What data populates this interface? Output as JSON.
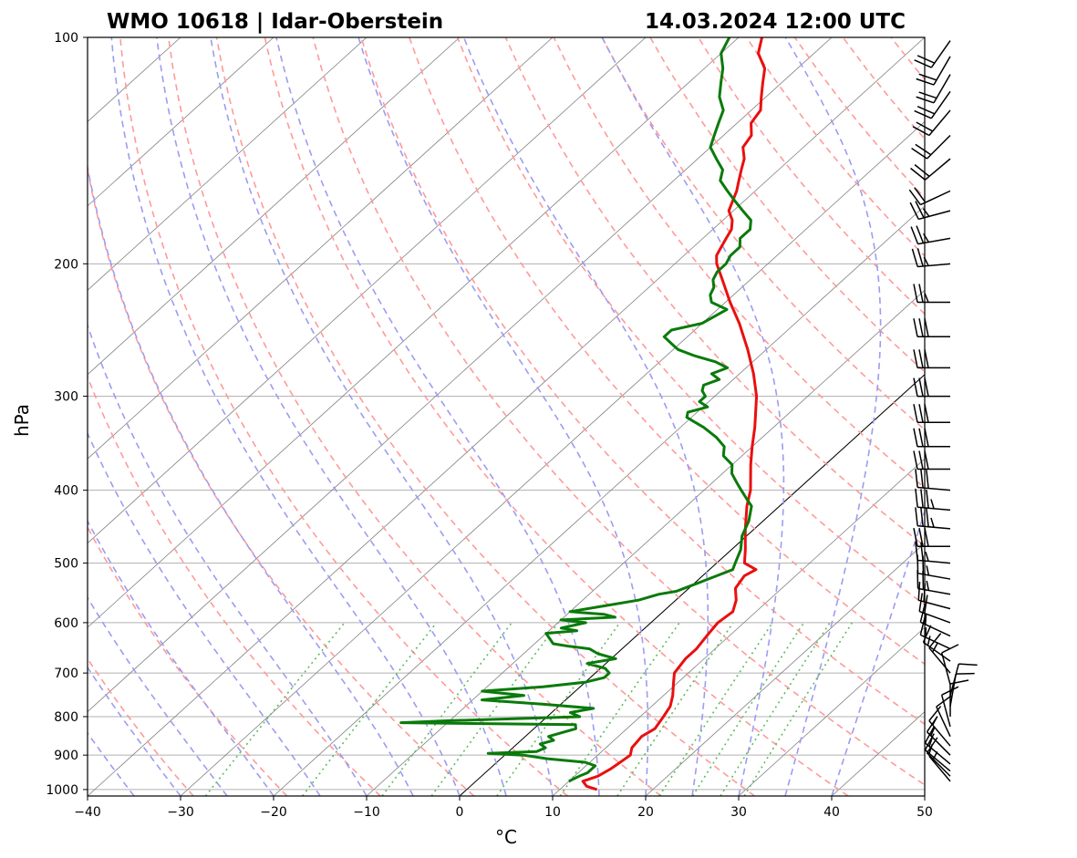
{
  "header": {
    "station": "WMO 10618 | Idar-Oberstein",
    "datetime": "14.03.2024 12:00 UTC"
  },
  "chart_data": {
    "type": "skew-t",
    "title_left": "WMO 10618 | Idar-Oberstein",
    "title_right": "14.03.2024 12:00 UTC",
    "xlabel": "°C",
    "ylabel": "hPa",
    "xlim": [
      -40,
      50
    ],
    "ylim": [
      1020,
      100
    ],
    "x_ticks": [
      -40,
      -30,
      -20,
      -10,
      0,
      10,
      20,
      30,
      40,
      50
    ],
    "x_tick_labels": [
      "−40",
      "−30",
      "−20",
      "−10",
      "0",
      "10",
      "20",
      "30",
      "40",
      "50"
    ],
    "y_ticks": [
      1000,
      900,
      800,
      700,
      600,
      500,
      400,
      300,
      200,
      100
    ],
    "y_tick_labels": [
      "1000",
      "900",
      "800",
      "700",
      "600",
      "500",
      "400",
      "300",
      "200",
      "100"
    ],
    "colors": {
      "temperature": "#e8100f",
      "dewpoint": "#0a7a0a",
      "dry_adiabat": "#ff9a9a",
      "moist_adiabat": "#9c9cf2",
      "mixing_ratio": "#5fba5f",
      "isotherm": "#808080",
      "grid": "#b0b0b0"
    },
    "series": [
      {
        "name": "Temperature",
        "points": [
          [
            1000,
            14.0
          ],
          [
            990,
            12.5
          ],
          [
            975,
            11.5
          ],
          [
            960,
            12.5
          ],
          [
            940,
            13.0
          ],
          [
            925,
            13.2
          ],
          [
            900,
            13.5
          ],
          [
            880,
            12.8
          ],
          [
            850,
            12.5
          ],
          [
            830,
            13.0
          ],
          [
            800,
            12.5
          ],
          [
            775,
            12.0
          ],
          [
            750,
            11.0
          ],
          [
            720,
            9.5
          ],
          [
            700,
            8.5
          ],
          [
            670,
            8.0
          ],
          [
            650,
            8.0
          ],
          [
            620,
            7.5
          ],
          [
            600,
            7.2
          ],
          [
            580,
            7.5
          ],
          [
            560,
            6.5
          ],
          [
            540,
            5.0
          ],
          [
            520,
            4.5
          ],
          [
            510,
            5.0
          ],
          [
            500,
            3.0
          ],
          [
            480,
            1.5
          ],
          [
            450,
            -1.0
          ],
          [
            420,
            -3.5
          ],
          [
            400,
            -5.0
          ],
          [
            370,
            -8.0
          ],
          [
            350,
            -10.0
          ],
          [
            330,
            -12.0
          ],
          [
            300,
            -15.5
          ],
          [
            280,
            -18.5
          ],
          [
            260,
            -22.0
          ],
          [
            240,
            -26.0
          ],
          [
            225,
            -29.5
          ],
          [
            210,
            -33.0
          ],
          [
            200,
            -35.5
          ],
          [
            195,
            -36.5
          ],
          [
            190,
            -37.0
          ],
          [
            185,
            -37.5
          ],
          [
            180,
            -38.0
          ],
          [
            175,
            -39.0
          ],
          [
            170,
            -40.5
          ],
          [
            160,
            -42.0
          ],
          [
            155,
            -43.0
          ],
          [
            150,
            -44.0
          ],
          [
            145,
            -45.0
          ],
          [
            140,
            -46.5
          ],
          [
            135,
            -47.0
          ],
          [
            130,
            -48.5
          ],
          [
            125,
            -49.0
          ],
          [
            120,
            -50.5
          ],
          [
            115,
            -52.0
          ],
          [
            110,
            -53.5
          ],
          [
            105,
            -56.0
          ],
          [
            100,
            -57.5
          ]
        ]
      },
      {
        "name": "Dewpoint",
        "points": [
          [
            975,
            10.0
          ],
          [
            960,
            10.5
          ],
          [
            950,
            11.0
          ],
          [
            930,
            11.0
          ],
          [
            920,
            9.5
          ],
          [
            910,
            5.0
          ],
          [
            900,
            2.0
          ],
          [
            895,
            -2.0
          ],
          [
            890,
            3.0
          ],
          [
            880,
            3.5
          ],
          [
            870,
            2.5
          ],
          [
            860,
            3.5
          ],
          [
            850,
            2.5
          ],
          [
            840,
            3.5
          ],
          [
            830,
            4.5
          ],
          [
            820,
            4.0
          ],
          [
            815,
            -15.0
          ],
          [
            810,
            -10.0
          ],
          [
            800,
            3.5
          ],
          [
            790,
            2.0
          ],
          [
            785,
            3.0
          ],
          [
            780,
            4.0
          ],
          [
            770,
            -2.0
          ],
          [
            760,
            -9.0
          ],
          [
            750,
            -5.0
          ],
          [
            740,
            -10.0
          ],
          [
            730,
            -4.0
          ],
          [
            720,
            0.0
          ],
          [
            710,
            1.5
          ],
          [
            700,
            1.5
          ],
          [
            690,
            0.5
          ],
          [
            680,
            -2.0
          ],
          [
            670,
            0.5
          ],
          [
            660,
            -2.0
          ],
          [
            650,
            -3.5
          ],
          [
            645,
            -6.0
          ],
          [
            640,
            -8.0
          ],
          [
            620,
            -10.0
          ],
          [
            615,
            -7.0
          ],
          [
            610,
            -9.0
          ],
          [
            600,
            -7.0
          ],
          [
            595,
            -10.0
          ],
          [
            590,
            -4.5
          ],
          [
            585,
            -6.0
          ],
          [
            580,
            -10.0
          ],
          [
            570,
            -7.0
          ],
          [
            560,
            -4.0
          ],
          [
            550,
            -2.5
          ],
          [
            545,
            -1.0
          ],
          [
            540,
            -0.5
          ],
          [
            530,
            0.5
          ],
          [
            520,
            1.5
          ],
          [
            510,
            2.5
          ],
          [
            500,
            2.0
          ],
          [
            480,
            1.0
          ],
          [
            460,
            -0.5
          ],
          [
            440,
            -1.5
          ],
          [
            420,
            -3.0
          ],
          [
            410,
            -4.5
          ],
          [
            400,
            -6.0
          ],
          [
            390,
            -7.5
          ],
          [
            380,
            -9.0
          ],
          [
            370,
            -10.0
          ],
          [
            360,
            -12.0
          ],
          [
            350,
            -13.0
          ],
          [
            340,
            -15.0
          ],
          [
            330,
            -17.5
          ],
          [
            320,
            -20.5
          ],
          [
            315,
            -21.0
          ],
          [
            310,
            -19.5
          ],
          [
            305,
            -21.0
          ],
          [
            300,
            -21.0
          ],
          [
            295,
            -22.0
          ],
          [
            290,
            -22.5
          ],
          [
            285,
            -21.5
          ],
          [
            280,
            -23.0
          ],
          [
            275,
            -22.0
          ],
          [
            270,
            -24.0
          ],
          [
            265,
            -27.0
          ],
          [
            260,
            -29.5
          ],
          [
            255,
            -31.0
          ],
          [
            250,
            -32.5
          ],
          [
            245,
            -32.5
          ],
          [
            240,
            -30.0
          ],
          [
            235,
            -29.5
          ],
          [
            230,
            -29.0
          ],
          [
            225,
            -31.5
          ],
          [
            220,
            -32.5
          ],
          [
            215,
            -33.0
          ],
          [
            210,
            -34.0
          ],
          [
            205,
            -34.5
          ],
          [
            200,
            -34.5
          ],
          [
            195,
            -35.0
          ],
          [
            190,
            -35.0
          ],
          [
            185,
            -36.0
          ],
          [
            180,
            -36.0
          ],
          [
            175,
            -37.0
          ],
          [
            170,
            -39.0
          ],
          [
            165,
            -41.0
          ],
          [
            160,
            -43.0
          ],
          [
            155,
            -45.0
          ],
          [
            150,
            -46.0
          ],
          [
            145,
            -48.0
          ],
          [
            140,
            -50.0
          ],
          [
            135,
            -51.0
          ],
          [
            130,
            -52.0
          ],
          [
            125,
            -53.0
          ],
          [
            120,
            -55.0
          ],
          [
            115,
            -56.5
          ],
          [
            110,
            -58.0
          ],
          [
            105,
            -60.0
          ],
          [
            100,
            -61.0
          ]
        ]
      }
    ],
    "wind_barbs": [
      {
        "p": 975,
        "dir": 320,
        "kt": 5
      },
      {
        "p": 960,
        "dir": 315,
        "kt": 10
      },
      {
        "p": 945,
        "dir": 310,
        "kt": 15
      },
      {
        "p": 925,
        "dir": 310,
        "kt": 15
      },
      {
        "p": 900,
        "dir": 315,
        "kt": 15
      },
      {
        "p": 875,
        "dir": 320,
        "kt": 15
      },
      {
        "p": 850,
        "dir": 335,
        "kt": 10
      },
      {
        "p": 825,
        "dir": 345,
        "kt": 10
      },
      {
        "p": 800,
        "dir": 0,
        "kt": 10
      },
      {
        "p": 775,
        "dir": 10,
        "kt": 10
      },
      {
        "p": 750,
        "dir": 15,
        "kt": 10
      },
      {
        "p": 725,
        "dir": 345,
        "kt": 10
      },
      {
        "p": 700,
        "dir": 320,
        "kt": 15
      },
      {
        "p": 675,
        "dir": 305,
        "kt": 15
      },
      {
        "p": 650,
        "dir": 295,
        "kt": 15
      },
      {
        "p": 625,
        "dir": 295,
        "kt": 15
      },
      {
        "p": 600,
        "dir": 290,
        "kt": 20
      },
      {
        "p": 575,
        "dir": 285,
        "kt": 20
      },
      {
        "p": 550,
        "dir": 280,
        "kt": 25
      },
      {
        "p": 525,
        "dir": 280,
        "kt": 25
      },
      {
        "p": 500,
        "dir": 275,
        "kt": 25
      },
      {
        "p": 475,
        "dir": 270,
        "kt": 30
      },
      {
        "p": 450,
        "dir": 275,
        "kt": 35
      },
      {
        "p": 425,
        "dir": 275,
        "kt": 35
      },
      {
        "p": 400,
        "dir": 275,
        "kt": 30
      },
      {
        "p": 375,
        "dir": 270,
        "kt": 30
      },
      {
        "p": 350,
        "dir": 270,
        "kt": 30
      },
      {
        "p": 325,
        "dir": 270,
        "kt": 30
      },
      {
        "p": 300,
        "dir": 270,
        "kt": 30
      },
      {
        "p": 275,
        "dir": 270,
        "kt": 30
      },
      {
        "p": 250,
        "dir": 270,
        "kt": 30
      },
      {
        "p": 225,
        "dir": 270,
        "kt": 25
      },
      {
        "p": 200,
        "dir": 265,
        "kt": 25
      },
      {
        "p": 185,
        "dir": 260,
        "kt": 25
      },
      {
        "p": 170,
        "dir": 255,
        "kt": 25
      },
      {
        "p": 160,
        "dir": 245,
        "kt": 20
      },
      {
        "p": 145,
        "dir": 230,
        "kt": 20
      },
      {
        "p": 135,
        "dir": 225,
        "kt": 20
      },
      {
        "p": 125,
        "dir": 220,
        "kt": 20
      },
      {
        "p": 118,
        "dir": 215,
        "kt": 20
      },
      {
        "p": 112,
        "dir": 210,
        "kt": 20
      },
      {
        "p": 106,
        "dir": 210,
        "kt": 20
      },
      {
        "p": 101,
        "dir": 215,
        "kt": 20
      }
    ]
  }
}
